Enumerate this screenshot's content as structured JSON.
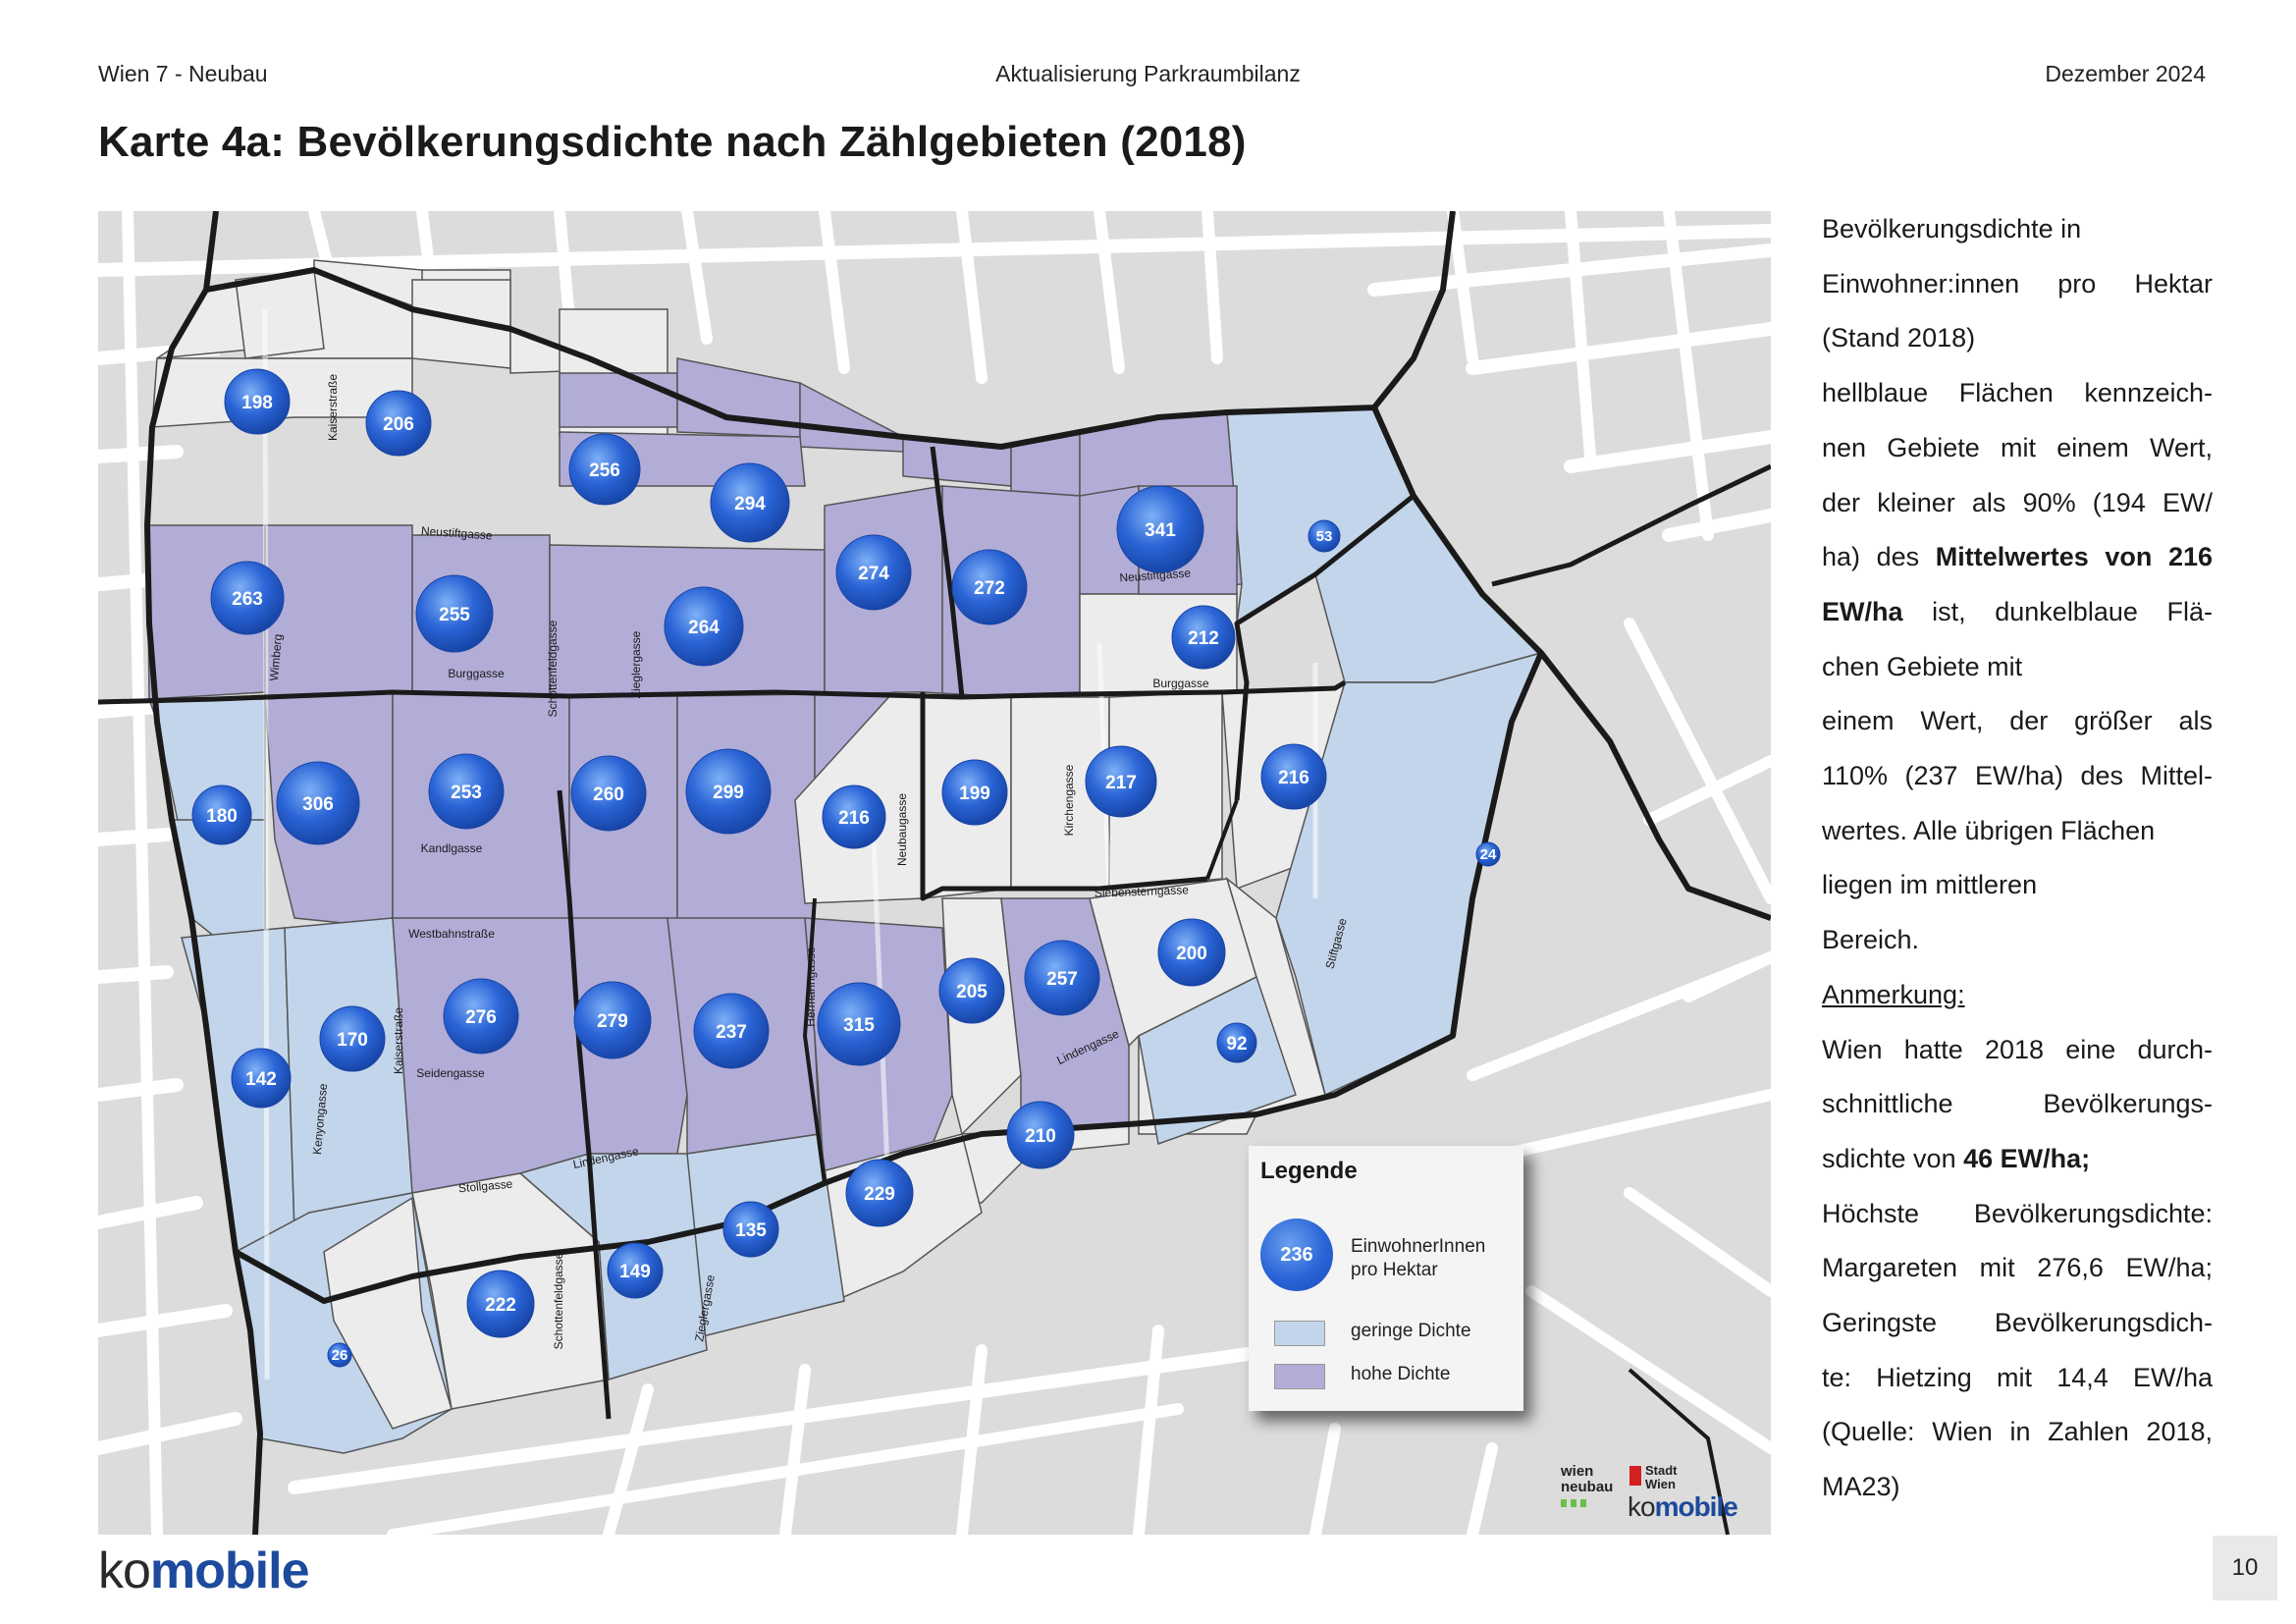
{
  "header": {
    "left": "Wien 7 - Neubau",
    "center": "Aktualisierung Parkraumbilanz",
    "right": "Dezember  2024"
  },
  "title": "Karte 4a: Bevölkerungsdichte nach Zählgebieten (2018)",
  "map": {
    "colors": {
      "background": "#dcdcdc",
      "street": "#ffffff",
      "low_density": "#c3d5ea",
      "high_density": "#b1add7",
      "medium_density": "#ececec",
      "bubble": "#2a64d6",
      "boundary": "#1a1a1a"
    },
    "streets": [
      "Kaiserstraße",
      "Neustiftgasse",
      "Neustiftgasse",
      "Wimberg",
      "Burggasse",
      "Schottenfeldgasse",
      "Zieglergasse",
      "Burggasse",
      "Neubaugasse",
      "Kirchengasse",
      "Kandlgasse",
      "Siebensterngasse",
      "Stiftgasse",
      "Westbahnstraße",
      "Kaiserstraße",
      "Hermanngasse",
      "Lindengasse",
      "Kenyongasse",
      "Seidengasse",
      "Lindengasse",
      "Stollgasse",
      "Schottenfeldgasse",
      "Zieglergasse"
    ],
    "values": [
      198,
      206,
      256,
      294,
      341,
      53,
      263,
      255,
      264,
      274,
      272,
      212,
      180,
      306,
      253,
      260,
      299,
      216,
      199,
      217,
      216,
      24,
      142,
      170,
      276,
      279,
      237,
      315,
      205,
      257,
      200,
      92,
      210,
      229,
      135,
      149,
      222,
      26
    ],
    "legend": {
      "title": "Legende",
      "bubble_value": "236",
      "bubble_label_1": "EinwohnerInnen",
      "bubble_label_2": "pro Hektar",
      "low_label": "geringe Dichte",
      "high_label": "hohe Dichte"
    },
    "logos": {
      "wien_neubau_1": "wien",
      "wien_neubau_2": "neubau",
      "stadt_wien_1": "Stadt",
      "stadt_wien_2": "Wien",
      "komobile_ko": "ko",
      "komobile_mobile": "mobile"
    }
  },
  "sidebar": {
    "lines": [
      "Bevölkerungsdichte in",
      "Einwohner:innen pro Hektar",
      "(Stand 2018)",
      "hellblaue Flächen kennzeich-",
      "nen Gebiete mit einem Wert,",
      "der kleiner als 90% (194 EW/",
      "ha) des ",
      "Mittelwertes von 216",
      "EW/ha",
      " ist, dunkelblaue Flä-",
      "chen Gebiete mit",
      "einem Wert, der größer als",
      "110% (237 EW/ha) des Mittel-",
      "wertes. Alle übrigen Flächen",
      "liegen im mittleren",
      "Bereich.",
      "Anmerkung:",
      "Wien hatte 2018 eine durch-",
      "schnittliche Bevölkerungs-",
      "sdichte von ",
      "46 EW/ha;",
      "Höchste Bevölkerungsdichte:",
      "Margareten mit 276,6 EW/ha;",
      "Geringste Bevölkerungsdich-",
      "te: Hietzing mit 14,4 EW/ha",
      "(Quelle: Wien in Zahlen 2018,",
      "MA23)"
    ]
  },
  "footer": {
    "logo_ko": "ko",
    "logo_mobile": "mobile",
    "page_number": "10"
  }
}
